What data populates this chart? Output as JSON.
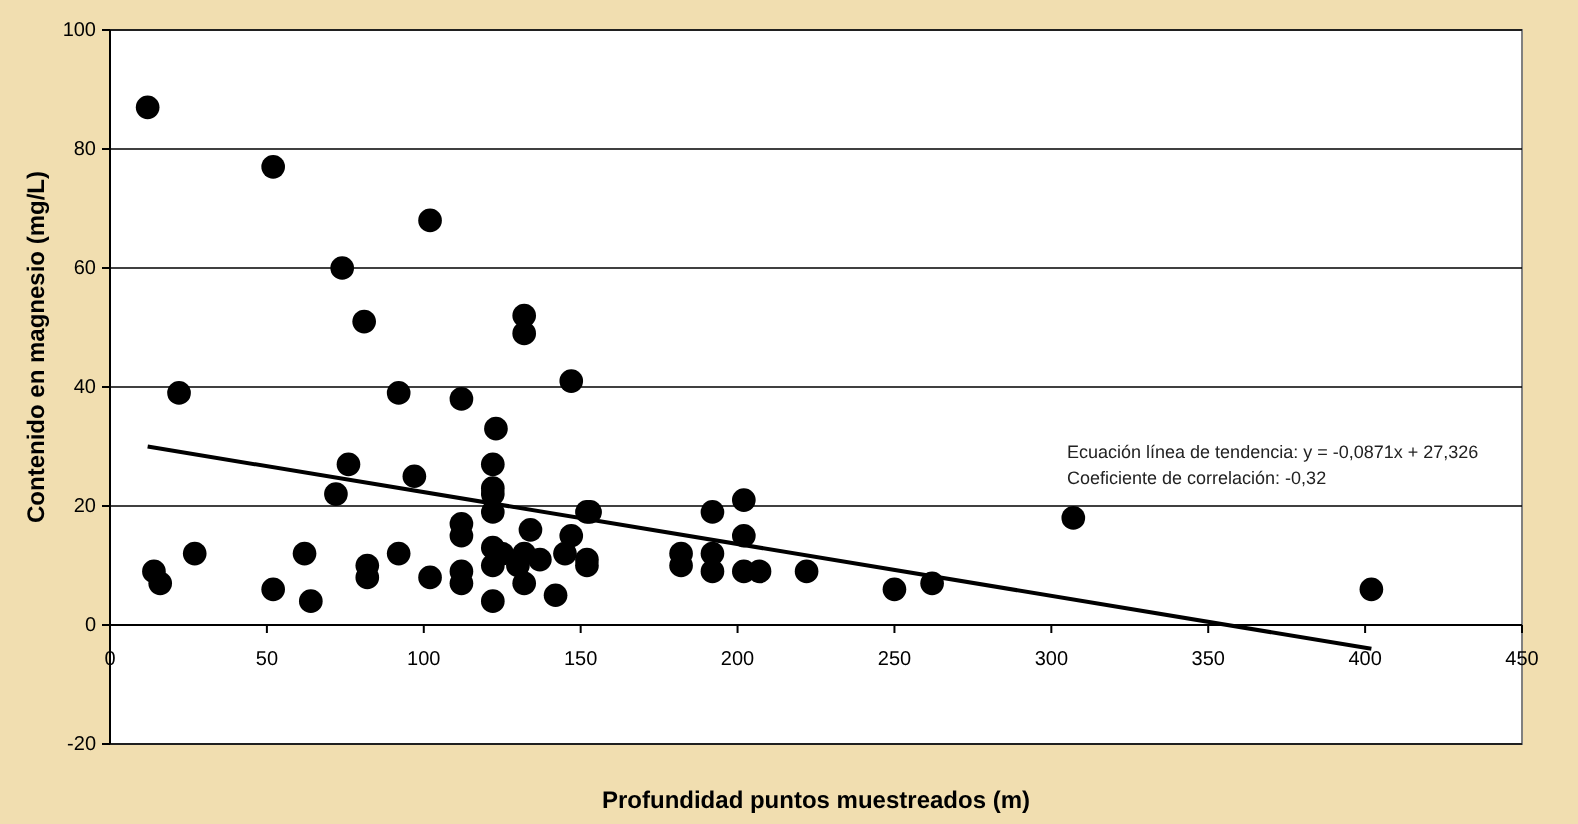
{
  "chart_data": {
    "type": "scatter",
    "xlabel": "Profundidad puntos muestreados (m)",
    "ylabel": "Contenido en magnesio (mg/L)",
    "xlim": [
      0,
      450
    ],
    "xticks": [
      0,
      50,
      100,
      150,
      200,
      250,
      300,
      350,
      400,
      450
    ],
    "ylim": [
      -20,
      100
    ],
    "yticks": [
      -20,
      0,
      20,
      40,
      60,
      80,
      100
    ],
    "grid": "y",
    "annotations": [
      "Ecuación línea de tendencia: y = -0,0871x + 27,326",
      "Coeficiente de correlación: -0,32"
    ],
    "series": [
      {
        "color": "#000000",
        "marker": "circle",
        "x": [
          12,
          52,
          74,
          102,
          81,
          132,
          132,
          147,
          22,
          92,
          112,
          123,
          76,
          97,
          72,
          122,
          122,
          122,
          122,
          112,
          112,
          134,
          152,
          153,
          192,
          202,
          202,
          307,
          147,
          145,
          14,
          16,
          27,
          52,
          62,
          64,
          82,
          82,
          92,
          102,
          112,
          112,
          122,
          122,
          122,
          125,
          130,
          132,
          132,
          137,
          142,
          152,
          152,
          182,
          182,
          192,
          192,
          202,
          207,
          222,
          250,
          262,
          402
        ],
        "values": [
          87,
          77,
          60,
          68,
          51,
          52,
          49,
          41,
          39,
          39,
          38,
          33,
          27,
          25,
          22,
          27,
          23,
          22,
          19,
          17,
          15,
          16,
          19,
          19,
          19,
          21,
          15,
          18,
          15,
          12,
          9,
          7,
          12,
          6,
          12,
          4,
          10,
          8,
          12,
          8,
          9,
          7,
          13,
          10,
          4,
          12,
          10,
          12,
          7,
          11,
          5,
          11,
          10,
          12,
          10,
          12,
          9,
          9,
          9,
          9,
          6,
          7,
          6
        ]
      },
      {
        "type": "line",
        "color": "#000000",
        "x": [
          12,
          402
        ],
        "values": [
          30,
          -4
        ]
      }
    ]
  }
}
